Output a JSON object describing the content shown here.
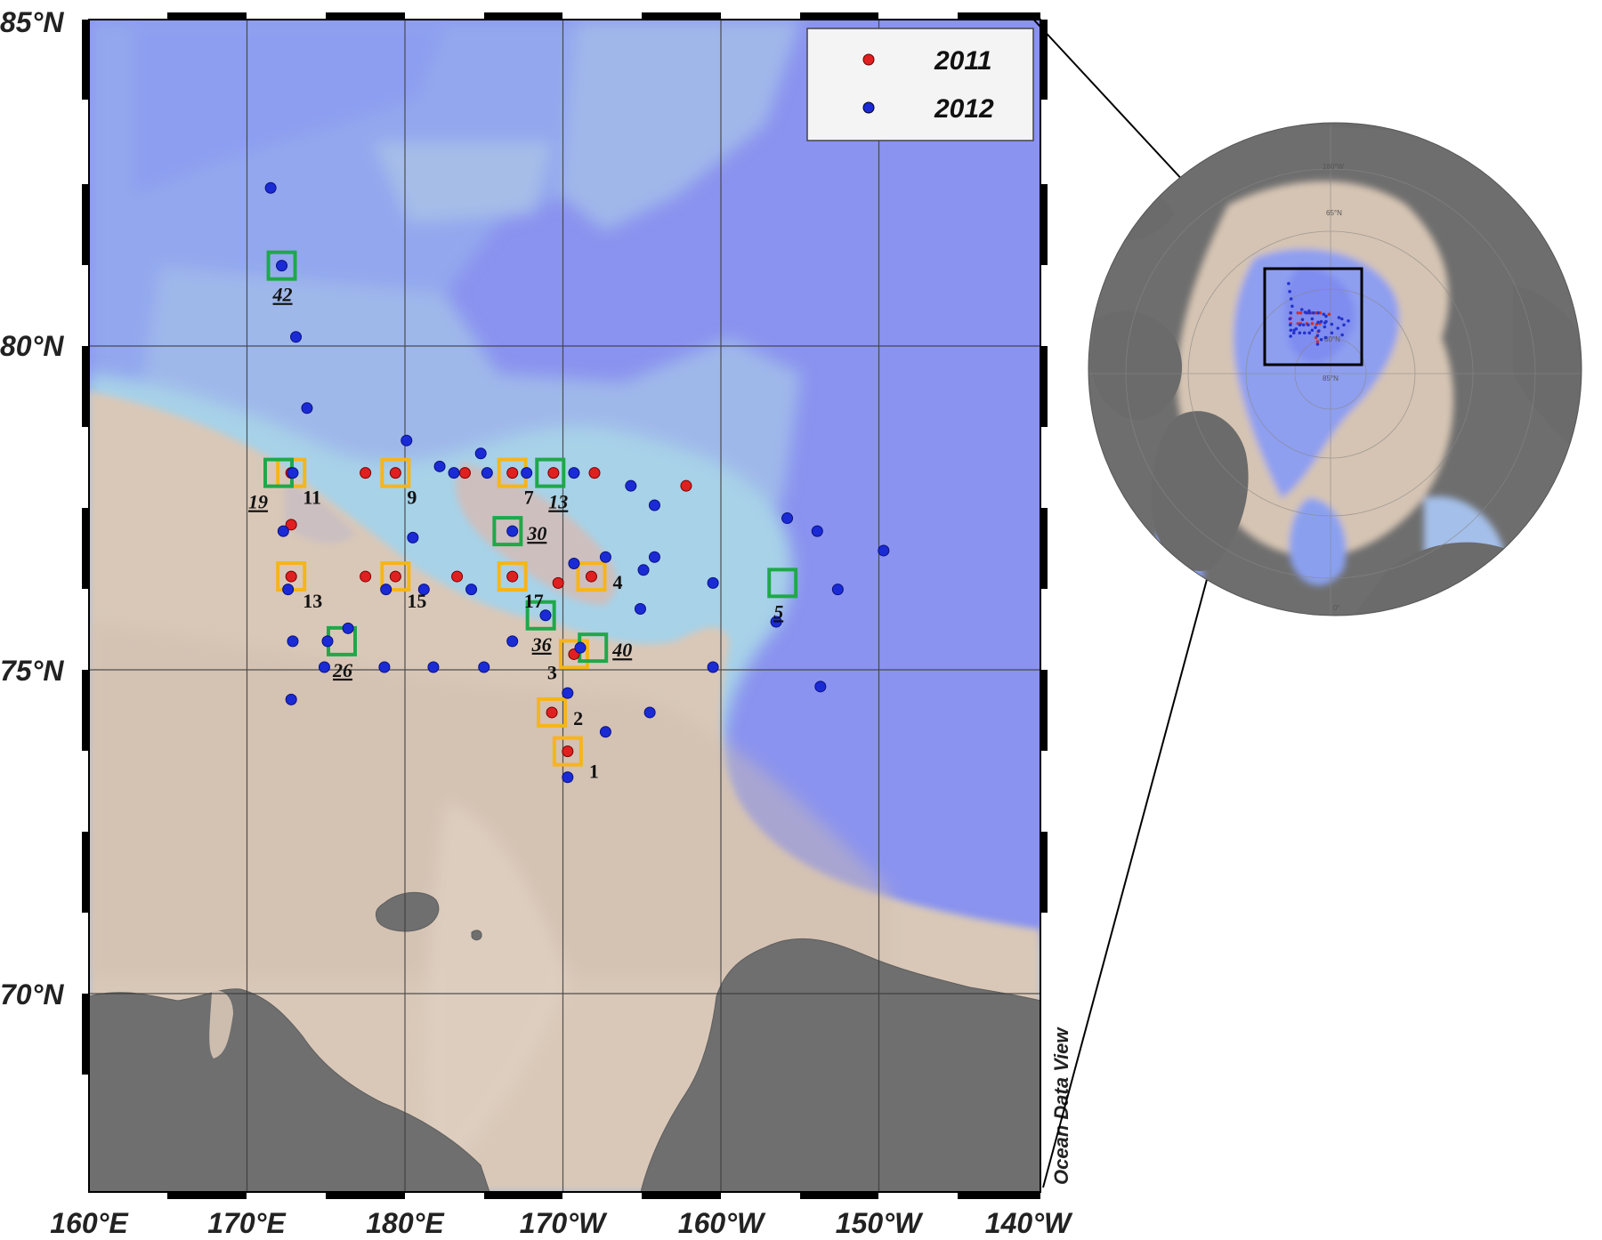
{
  "legend": {
    "items": [
      {
        "label": "2011",
        "color": "#e02020"
      },
      {
        "label": "2012",
        "color": "#1a2bd6"
      }
    ]
  },
  "axes": {
    "lat_ticks": [
      "85°N",
      "80°N",
      "75°N",
      "70°N"
    ],
    "lon_ticks": [
      "160°E",
      "170°E",
      "180°E",
      "170°W",
      "160°W",
      "150°W",
      "140°W"
    ]
  },
  "credit": "Ocean Data View",
  "colors": {
    "ocean_deep": "#8a93ef",
    "ocean_mid": "#93acea",
    "shelf": "#9dc4e6",
    "seafloor_shallow": "#d9c7b7",
    "land": "#6f6f6f",
    "box_2011": "#f5b51b",
    "box_2012": "#1fa849"
  },
  "stations": {
    "red_points": [
      [
        172.8,
        78.0
      ],
      [
        177.5,
        78.0
      ],
      [
        179.4,
        78.0
      ],
      [
        183.8,
        78.0
      ],
      [
        186.8,
        78.0
      ],
      [
        189.4,
        78.0
      ],
      [
        192.0,
        78.0
      ],
      [
        197.8,
        77.8
      ],
      [
        172.8,
        77.2
      ],
      [
        172.8,
        76.4
      ],
      [
        177.5,
        76.4
      ],
      [
        179.4,
        76.4
      ],
      [
        183.3,
        76.4
      ],
      [
        186.8,
        76.4
      ],
      [
        189.7,
        76.3
      ],
      [
        191.8,
        76.4
      ],
      [
        190.7,
        75.2
      ],
      [
        189.3,
        74.3
      ],
      [
        190.3,
        73.7
      ]
    ],
    "blue_points": [
      [
        171.5,
        82.4
      ],
      [
        172.2,
        81.2
      ],
      [
        173.1,
        80.1
      ],
      [
        173.8,
        79.0
      ],
      [
        172.9,
        78.0
      ],
      [
        180.1,
        78.5
      ],
      [
        182.2,
        78.1
      ],
      [
        183.1,
        78.0
      ],
      [
        184.8,
        78.3
      ],
      [
        185.2,
        78.0
      ],
      [
        187.7,
        78.0
      ],
      [
        190.7,
        78.0
      ],
      [
        194.3,
        77.8
      ],
      [
        195.8,
        77.5
      ],
      [
        204.2,
        77.3
      ],
      [
        206.1,
        77.1
      ],
      [
        210.3,
        76.8
      ],
      [
        172.3,
        77.1
      ],
      [
        180.5,
        77.0
      ],
      [
        186.8,
        77.1
      ],
      [
        190.7,
        76.6
      ],
      [
        192.7,
        76.7
      ],
      [
        195.8,
        76.7
      ],
      [
        195.1,
        76.5
      ],
      [
        172.6,
        76.2
      ],
      [
        181.2,
        76.2
      ],
      [
        178.8,
        76.2
      ],
      [
        184.2,
        76.2
      ],
      [
        199.5,
        76.3
      ],
      [
        207.4,
        76.2
      ],
      [
        176.4,
        75.6
      ],
      [
        175.1,
        75.4
      ],
      [
        172.9,
        75.4
      ],
      [
        186.8,
        75.4
      ],
      [
        188.9,
        75.8
      ],
      [
        191.1,
        75.3
      ],
      [
        194.9,
        75.9
      ],
      [
        174.9,
        75.0
      ],
      [
        178.7,
        75.0
      ],
      [
        181.8,
        75.0
      ],
      [
        185.0,
        75.0
      ],
      [
        199.5,
        75.0
      ],
      [
        203.5,
        75.7
      ],
      [
        206.3,
        74.7
      ],
      [
        190.3,
        74.6
      ],
      [
        195.5,
        74.3
      ],
      [
        192.7,
        74.0
      ],
      [
        190.3,
        73.3
      ],
      [
        172.8,
        74.5
      ]
    ],
    "boxes_2011": [
      {
        "lon": 172.8,
        "lat": 78.0,
        "label": "11"
      },
      {
        "lon": 179.4,
        "lat": 78.0,
        "label": "9"
      },
      {
        "lon": 186.8,
        "lat": 78.0,
        "label": "7"
      },
      {
        "lon": 172.8,
        "lat": 76.4,
        "label": "13"
      },
      {
        "lon": 179.4,
        "lat": 76.4,
        "label": "15"
      },
      {
        "lon": 186.8,
        "lat": 76.4,
        "label": "17"
      },
      {
        "lon": 191.8,
        "lat": 76.4,
        "label": "4"
      },
      {
        "lon": 190.7,
        "lat": 75.2,
        "label": "3"
      },
      {
        "lon": 189.3,
        "lat": 74.3,
        "label": "2"
      },
      {
        "lon": 190.3,
        "lat": 73.7,
        "label": "1"
      }
    ],
    "boxes_2012": [
      {
        "lon": 172.2,
        "lat": 81.2,
        "label": "42"
      },
      {
        "lon": 172.0,
        "lat": 78.0,
        "label": "19"
      },
      {
        "lon": 189.2,
        "lat": 78.0,
        "label": "13"
      },
      {
        "lon": 186.5,
        "lat": 77.1,
        "label": "30"
      },
      {
        "lon": 188.6,
        "lat": 75.8,
        "label": "36"
      },
      {
        "lon": 176.0,
        "lat": 75.4,
        "label": "26"
      },
      {
        "lon": 191.9,
        "lat": 75.3,
        "label": "40"
      },
      {
        "lon": 203.9,
        "lat": 76.3,
        "label": "5"
      }
    ]
  }
}
